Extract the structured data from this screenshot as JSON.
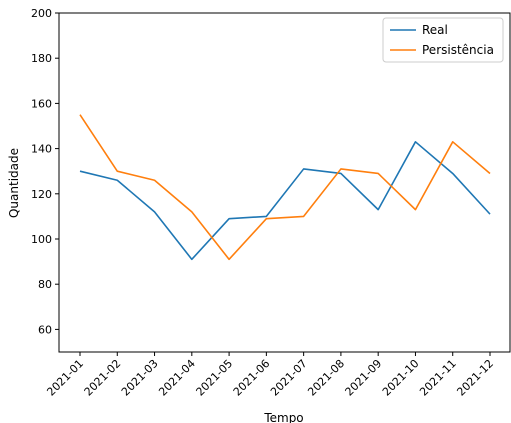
{
  "chart_data": {
    "type": "line",
    "categories": [
      "2021-01",
      "2021-02",
      "2021-03",
      "2021-04",
      "2021-05",
      "2021-06",
      "2021-07",
      "2021-08",
      "2021-09",
      "2021-10",
      "2021-11",
      "2021-12"
    ],
    "series": [
      {
        "name": "Real",
        "color": "#1f77b4",
        "values": [
          130,
          126,
          112,
          91,
          109,
          110,
          131,
          129,
          113,
          143,
          129,
          111
        ]
      },
      {
        "name": "Persistência",
        "color": "#ff7f0e",
        "values": [
          155,
          130,
          126,
          112,
          91,
          109,
          110,
          131,
          129,
          113,
          143,
          129
        ]
      }
    ],
    "xlabel": "Tempo",
    "ylabel": "Quantidade",
    "ylim": [
      50,
      200
    ],
    "yticks": [
      60,
      80,
      100,
      120,
      140,
      160,
      180,
      200
    ],
    "legend_position": "top-right",
    "grid": false
  }
}
